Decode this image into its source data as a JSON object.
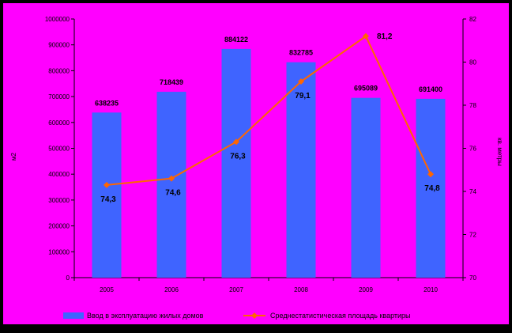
{
  "colors": {
    "outer_background": "#000000",
    "chart_background": "#ff00ff",
    "bar_color": "#3f64ff",
    "line_color": "#ff6600",
    "text_color": "#000000"
  },
  "chart_data": {
    "type": "bar",
    "categories": [
      "2005",
      "2006",
      "2007",
      "2008",
      "2009",
      "2010"
    ],
    "series": [
      {
        "name": "Ввод в эксплуатацию жилых домов",
        "type": "bar",
        "axis": "left",
        "values": [
          638235,
          718439,
          884122,
          832785,
          695089,
          691400
        ],
        "labels": [
          "638235",
          "718439",
          "884122",
          "832785",
          "695089",
          "691400"
        ]
      },
      {
        "name": "Среднестатистическая площадь квартиры",
        "type": "line",
        "axis": "right",
        "values": [
          74.3,
          74.6,
          76.3,
          79.1,
          81.2,
          74.8
        ],
        "labels": [
          "74,3",
          "74,6",
          "76,3",
          "79,1",
          "81,2",
          "74,8"
        ]
      }
    ],
    "left_axis": {
      "label": "м2",
      "range": [
        0,
        1000000
      ],
      "ticks": [
        "0",
        "100000",
        "200000",
        "300000",
        "400000",
        "500000",
        "600000",
        "700000",
        "800000",
        "900000",
        "1000000"
      ]
    },
    "right_axis": {
      "label": "кв. метры",
      "range": [
        70,
        82
      ],
      "ticks": [
        "70",
        "72",
        "74",
        "76",
        "78",
        "80",
        "82"
      ]
    },
    "grid": false,
    "legend": "bottom"
  }
}
